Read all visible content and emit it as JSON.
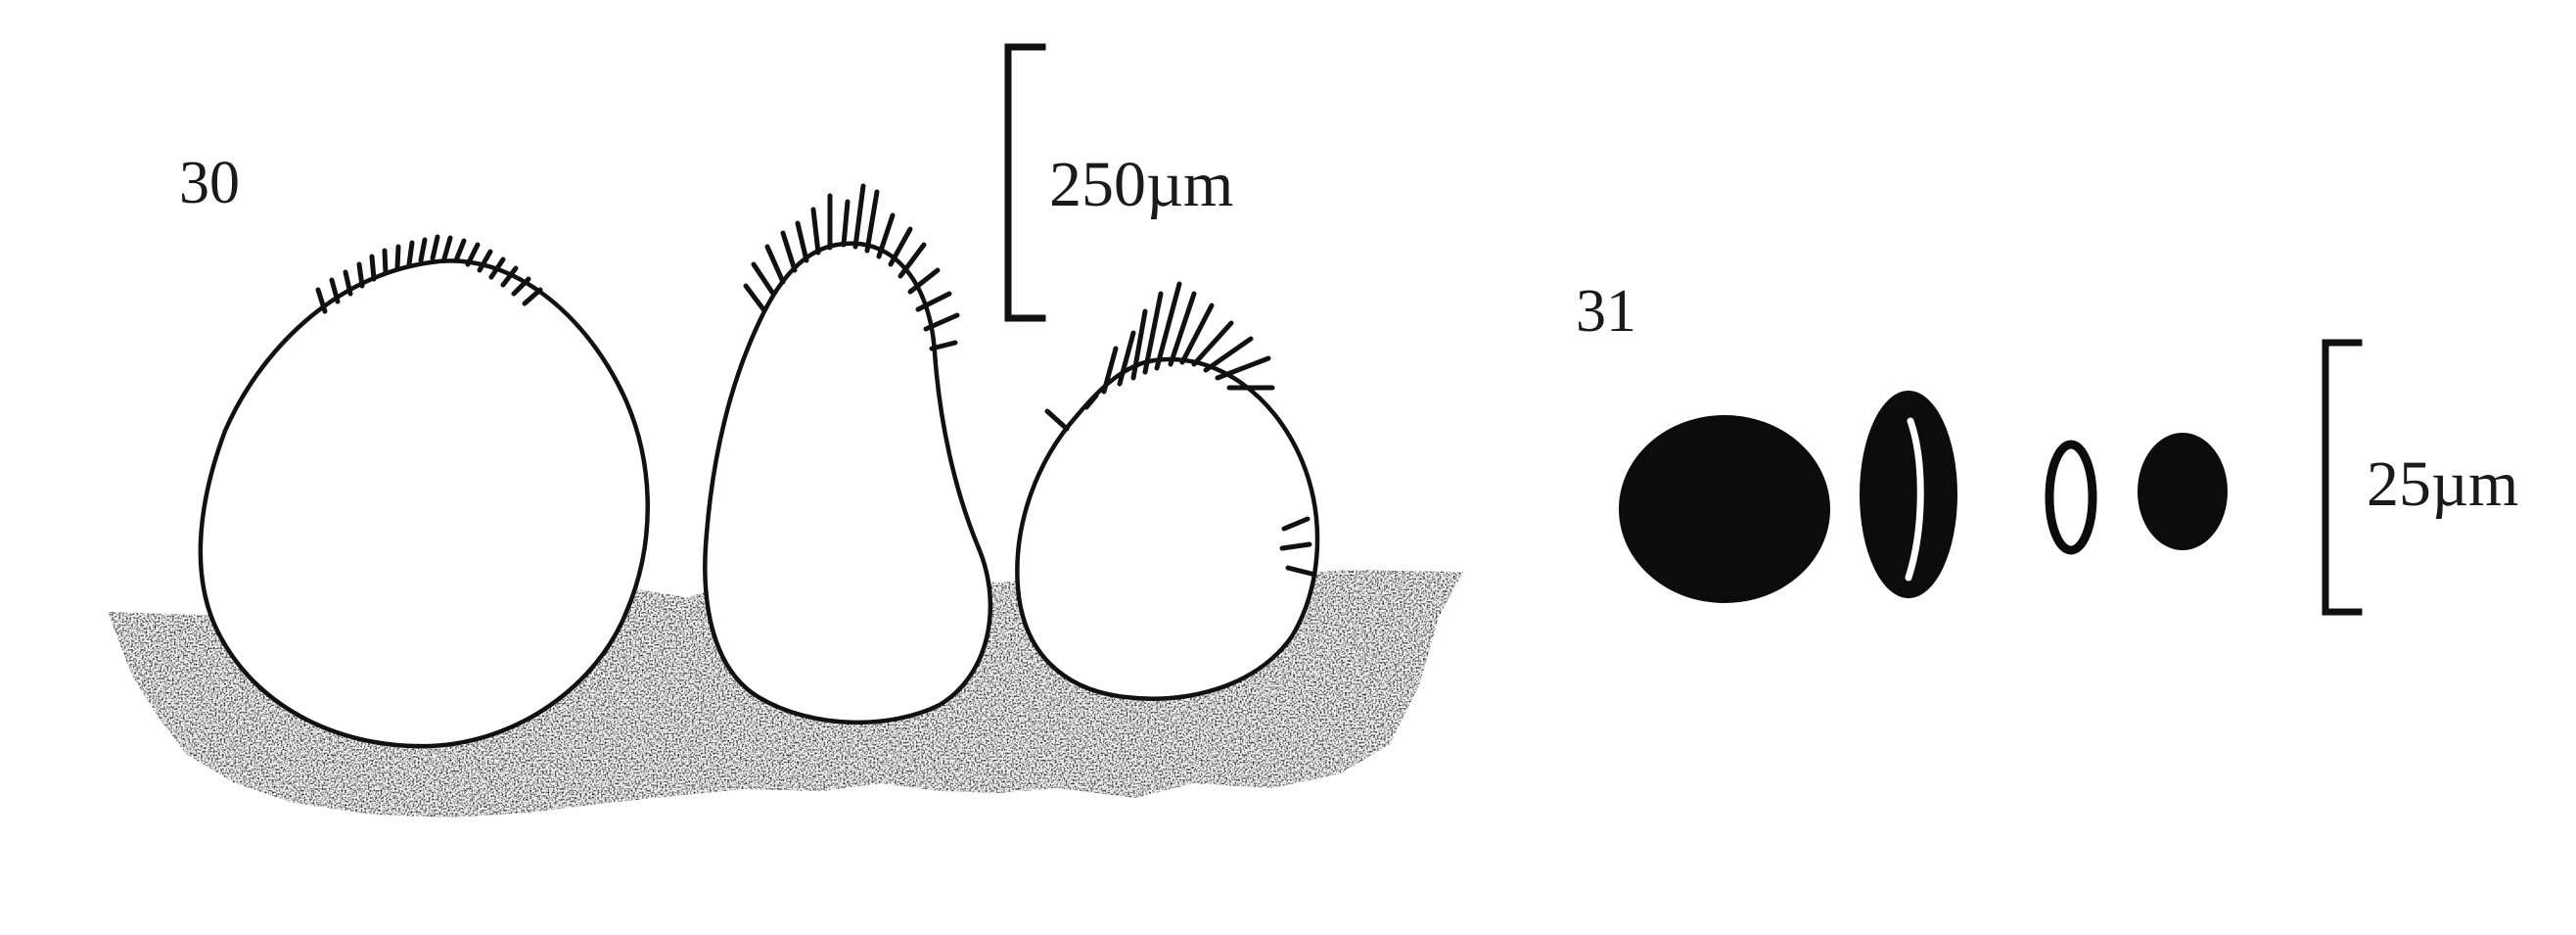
{
  "figures": [
    {
      "number": "30",
      "scale_label": "250µm",
      "subject_icon": "apothecia-on-substrate",
      "body_count": 3
    },
    {
      "number": "31",
      "scale_label": "25µm",
      "subject_icon": "spores",
      "spore_count": 4
    }
  ],
  "colors": {
    "ink": "#111111",
    "paper": "#ffffff",
    "substrate": "#2a2a2a"
  }
}
